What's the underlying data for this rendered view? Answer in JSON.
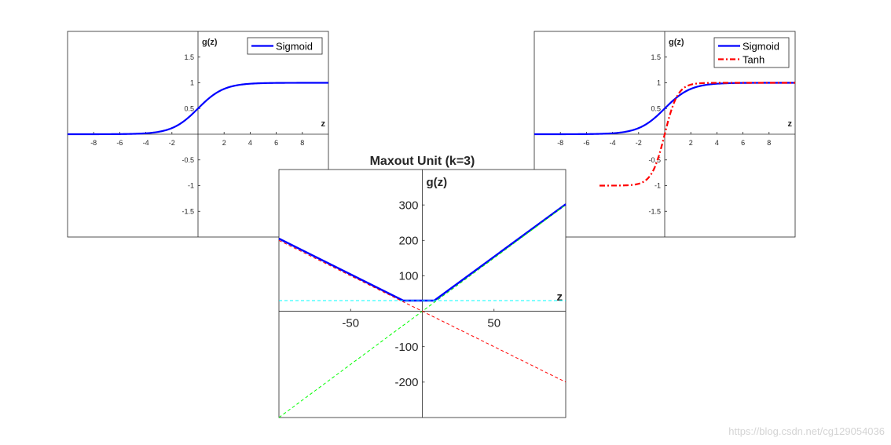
{
  "chart_data": [
    {
      "type": "line",
      "id": "sigmoid",
      "title": "",
      "xlabel": "z",
      "ylabel": "g(z)",
      "xlim": [
        -10,
        10
      ],
      "ylim": [
        -2,
        2
      ],
      "xticks": [
        -8,
        -6,
        -4,
        -2,
        2,
        4,
        6,
        8
      ],
      "xtick_labels": [
        "-8",
        "-6",
        "-4",
        "-2",
        "2",
        "4",
        "6",
        "8"
      ],
      "yticks": [
        1.5,
        1,
        0.5,
        -0.5,
        -1,
        -1.5
      ],
      "ytick_labels": [
        "1.5",
        "1",
        "0.5",
        "-0.5",
        "-1",
        "-1.5"
      ],
      "grid": false,
      "legend": "top-right",
      "series": [
        {
          "name": "Sigmoid",
          "function": "sigmoid",
          "x_range": [
            -10,
            10
          ],
          "color": "#0000ff",
          "style": "solid"
        }
      ]
    },
    {
      "type": "line",
      "id": "sigmoid-tanh",
      "title": "",
      "xlabel": "z",
      "ylabel": "g(z)",
      "xlim": [
        -10,
        10
      ],
      "ylim": [
        -2,
        2
      ],
      "xticks": [
        -8,
        -6,
        -4,
        -2,
        2,
        4,
        6,
        8
      ],
      "xtick_labels": [
        "-8",
        "-6",
        "-4",
        "-2",
        "2",
        "4",
        "6",
        "8"
      ],
      "yticks": [
        1.5,
        1,
        0.5,
        -0.5,
        -1,
        -1.5
      ],
      "ytick_labels": [
        "1.5",
        "1",
        "0.5",
        "-0.5",
        "-1",
        "-1.5"
      ],
      "grid": false,
      "legend": "top-right",
      "series": [
        {
          "name": "Sigmoid",
          "function": "sigmoid",
          "x_range": [
            -10,
            10
          ],
          "color": "#0000ff",
          "style": "solid"
        },
        {
          "name": "Tanh",
          "function": "tanh",
          "x_range": [
            -5,
            10
          ],
          "color": "#ff0000",
          "style": "dashdot"
        }
      ]
    },
    {
      "type": "line",
      "id": "maxout",
      "title": "Maxout Unit (k=3)",
      "xlabel": "z",
      "ylabel": "g(z)",
      "xlim": [
        -100,
        100
      ],
      "ylim": [
        -300,
        400
      ],
      "xticks": [
        -50,
        50
      ],
      "xtick_labels": [
        "-50",
        "50"
      ],
      "yticks": [
        300,
        200,
        100,
        -100,
        -200
      ],
      "ytick_labels": [
        "300",
        "200",
        "100",
        "-100",
        "-200"
      ],
      "grid": false,
      "legend": "none",
      "series": [
        {
          "x": [
            -100,
            -13.3,
            8.3,
            100
          ],
          "y": [
            205,
            30,
            30,
            302
          ],
          "color": "#0000ff",
          "style": "solid",
          "width": 2.5
        },
        {
          "x": [
            -100,
            100
          ],
          "y": [
            30,
            30
          ],
          "color": "#00ffff",
          "style": "dashed",
          "width": 1
        },
        {
          "x": [
            -100,
            100
          ],
          "y": [
            -300,
            300
          ],
          "color": "#00ff00",
          "style": "dashed",
          "width": 1
        },
        {
          "x": [
            -100,
            100
          ],
          "y": [
            200,
            -200
          ],
          "color": "#ff0000",
          "style": "dashed",
          "width": 1
        }
      ]
    }
  ],
  "watermark": "https://blog.csdn.net/cg129054036"
}
